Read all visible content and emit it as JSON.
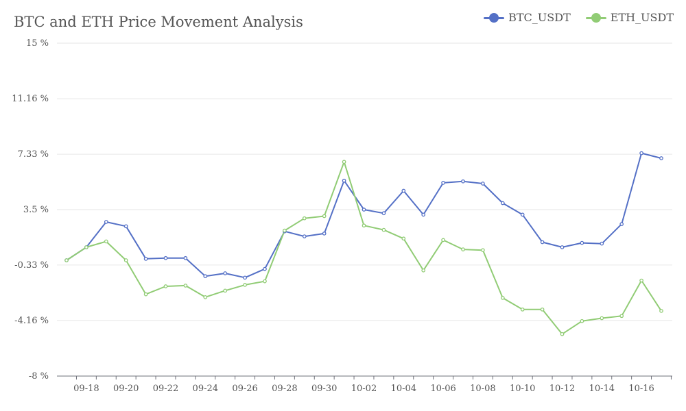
{
  "chart_data": {
    "type": "line",
    "title": "BTC and ETH Price Movement Analysis",
    "xlabel": "",
    "ylabel": "",
    "ylim": [
      -8,
      15
    ],
    "y_ticks": [
      {
        "value": -8,
        "label": "-8 %"
      },
      {
        "value": -4.16,
        "label": "-4.16 %"
      },
      {
        "value": -0.33,
        "label": "-0.33 %"
      },
      {
        "value": 3.5,
        "label": "3.5 %"
      },
      {
        "value": 7.33,
        "label": "7.33 %"
      },
      {
        "value": 11.16,
        "label": "11.16 %"
      },
      {
        "value": 15,
        "label": "15 %"
      }
    ],
    "x_tick_labels": [
      "09-18",
      "09-20",
      "09-22",
      "09-24",
      "09-26",
      "09-28",
      "09-30",
      "10-02",
      "10-04",
      "10-06",
      "10-08",
      "10-10",
      "10-12",
      "10-14",
      "10-16"
    ],
    "x": [
      "09-17",
      "09-18",
      "09-19",
      "09-20",
      "09-21",
      "09-22",
      "09-23",
      "09-24",
      "09-25",
      "09-26",
      "09-27",
      "09-28",
      "09-29",
      "09-30",
      "10-01",
      "10-02",
      "10-03",
      "10-04",
      "10-05",
      "10-06",
      "10-07",
      "10-08",
      "10-09",
      "10-10",
      "10-11",
      "10-12",
      "10-13",
      "10-14",
      "10-15",
      "10-16",
      "10-17"
    ],
    "grid": "horizontal",
    "legend_position": "top-right",
    "series": [
      {
        "name": "BTC_USDT",
        "color": "#5470c6",
        "values": [
          0,
          0.9,
          2.65,
          2.35,
          0.1,
          0.15,
          0.15,
          -1.1,
          -0.9,
          -1.2,
          -0.6,
          2.0,
          1.65,
          1.85,
          5.5,
          3.5,
          3.25,
          4.8,
          3.15,
          5.35,
          5.45,
          5.3,
          3.95,
          3.15,
          1.25,
          0.9,
          1.2,
          1.15,
          2.5,
          7.4,
          7.05
        ]
      },
      {
        "name": "ETH_USDT",
        "color": "#91cc75",
        "values": [
          0,
          0.9,
          1.3,
          0,
          -2.35,
          -1.8,
          -1.75,
          -2.55,
          -2.1,
          -1.7,
          -1.45,
          2.05,
          2.9,
          3.05,
          6.8,
          2.4,
          2.1,
          1.5,
          -0.7,
          1.4,
          0.75,
          0.7,
          -2.6,
          -3.4,
          -3.4,
          -5.1,
          -4.2,
          -4.0,
          -3.85,
          -1.4,
          -3.5
        ]
      }
    ]
  }
}
